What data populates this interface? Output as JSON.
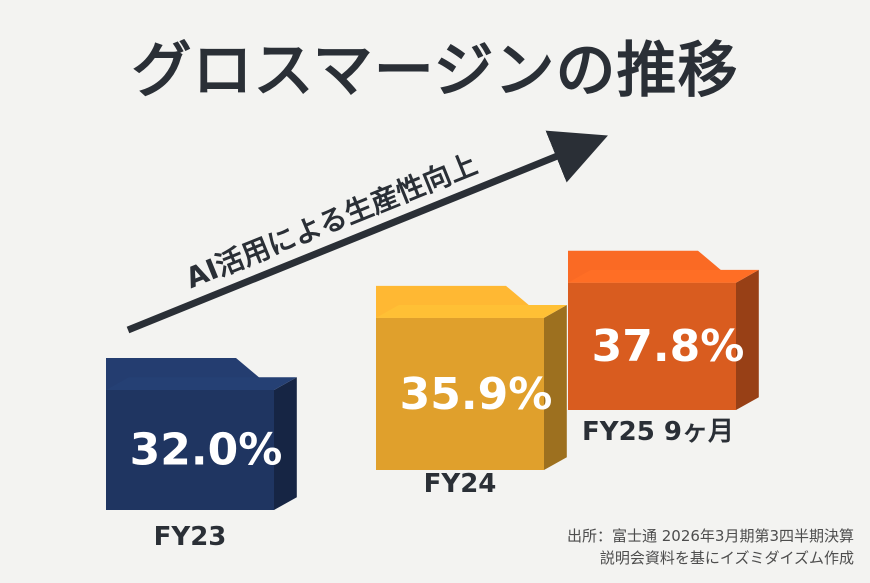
{
  "title": "グロスマージンの推移",
  "trend_label": "AI活用による生産性向上",
  "source": {
    "line1": "出所：富士通 2026年3月期第3四半期決算",
    "line2": "説明会資料を基にイズミダイズム作成"
  },
  "chart_data": {
    "type": "bar",
    "title": "グロスマージンの推移",
    "categories": [
      "FY23",
      "FY24",
      "FY25 9ヶ月"
    ],
    "values": [
      32.0,
      35.9,
      37.8
    ],
    "data_labels": [
      "32.0%",
      "35.9%",
      "37.8%"
    ],
    "colors": [
      "#1f3561",
      "#e0a02c",
      "#d95c1f"
    ],
    "annotation": "AI活用による生産性向上",
    "legend": "none",
    "grid": false
  }
}
